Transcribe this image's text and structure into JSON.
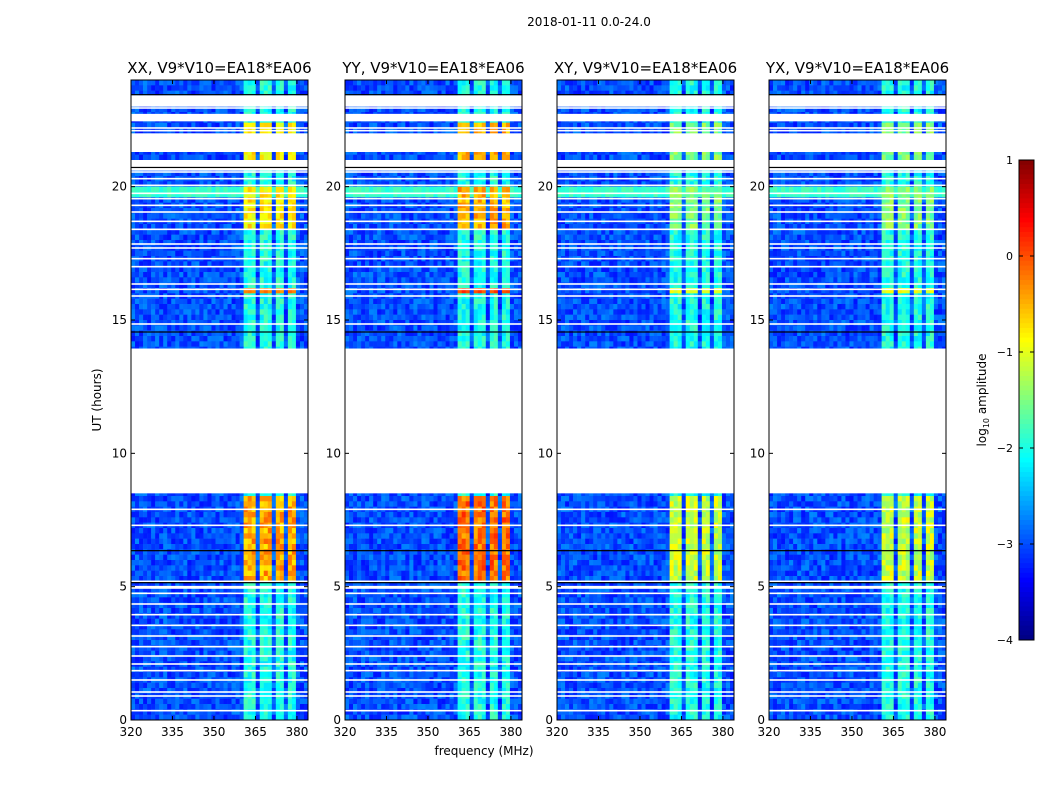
{
  "chart_data": {
    "type": "heatmap",
    "suptitle": "2018-01-11 0.0-24.0",
    "xlabel": "frequency (MHz)",
    "ylabel": "UT (hours)",
    "xlim": [
      320,
      384
    ],
    "ylim": [
      0,
      24
    ],
    "xticks": [
      320,
      335,
      350,
      365,
      380
    ],
    "yticks": [
      0,
      5,
      10,
      15,
      20
    ],
    "colorbar": {
      "label": "log",
      "label_sub": "10",
      "label_suffix": " amplitude",
      "range": [
        -4,
        1
      ],
      "ticks": [
        1,
        0,
        -1,
        -2,
        -3,
        -4
      ],
      "tick_labels": [
        "1",
        "0",
        "−1",
        "−2",
        "−3",
        "−4"
      ],
      "colormap": "jet"
    },
    "flagged_gap_hours": [
      8.5,
      13.9
    ],
    "rfi_band_mhz": [
      361,
      380
    ],
    "panels": [
      {
        "title": "XX, V9*V10=EA18*EA06",
        "peak_level": -0.2,
        "lowband_start_mhz": 361
      },
      {
        "title": "YY, V9*V10=EA18*EA06",
        "peak_level": 0.1,
        "lowband_start_mhz": 361
      },
      {
        "title": "XY, V9*V10=EA18*EA06",
        "peak_level": -0.9,
        "lowband_start_mhz": 361
      },
      {
        "title": "YX, V9*V10=EA18*EA06",
        "peak_level": -0.9,
        "lowband_start_mhz": 361
      }
    ]
  }
}
